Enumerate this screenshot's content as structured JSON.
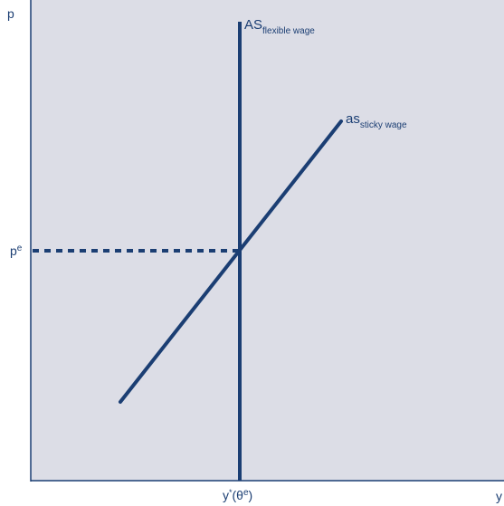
{
  "axes": {
    "y_axis_label": "p",
    "x_axis_label": "y"
  },
  "labels": {
    "price_expected": {
      "base": "p",
      "sup": "e"
    },
    "output_natural": {
      "base": "y",
      "sup1": "*",
      "mid": "(θ",
      "sup2": "e",
      "end": ")"
    },
    "curve_AS": {
      "base": "AS",
      "sub": "flexible wage"
    },
    "curve_as": {
      "base": "as",
      "sub": "sticky wage"
    }
  },
  "colors": {
    "plot_background": "#dcdde6",
    "curve": "#1b3e73",
    "axis": "#1b3e73",
    "text": "#1b3e73"
  }
}
